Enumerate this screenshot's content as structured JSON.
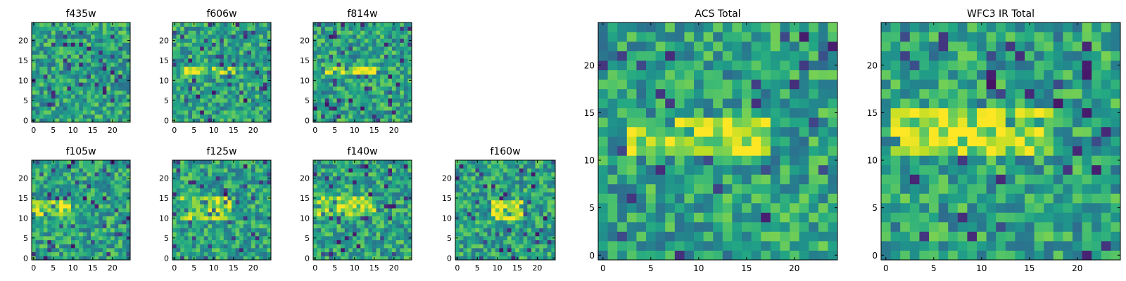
{
  "chart_data": {
    "type": "heatmap",
    "colormap": "viridis",
    "grid": false,
    "legend": "none",
    "panels": [
      {
        "name": "f435w-panel",
        "title": "f435w",
        "band_rows": [],
        "band_cols": [
          0,
          24
        ],
        "band_strength": 0.05,
        "xlim": [
          0,
          24
        ],
        "ylim": [
          0,
          24
        ],
        "xticks": [
          0,
          5,
          10,
          15,
          20
        ],
        "yticks": [
          0,
          5,
          10,
          15,
          20
        ]
      },
      {
        "name": "f606w-panel",
        "title": "f606w",
        "band_rows": [
          12,
          13
        ],
        "band_cols": [
          3,
          15
        ],
        "band_strength": 0.32,
        "xlim": [
          0,
          24
        ],
        "ylim": [
          0,
          24
        ],
        "xticks": [
          0,
          5,
          10,
          15,
          20
        ],
        "yticks": [
          0,
          5,
          10,
          15,
          20
        ]
      },
      {
        "name": "f814w-panel",
        "title": "f814w",
        "band_rows": [
          12,
          13
        ],
        "band_cols": [
          3,
          15
        ],
        "band_strength": 0.32,
        "xlim": [
          0,
          24
        ],
        "ylim": [
          0,
          24
        ],
        "xticks": [
          0,
          5,
          10,
          15,
          20
        ],
        "yticks": [
          0,
          5,
          10,
          15,
          20
        ]
      },
      {
        "name": "f105w-panel",
        "title": "f105w",
        "band_rows": [
          11,
          14
        ],
        "band_cols": [
          0,
          9
        ],
        "band_strength": 0.28,
        "xlim": [
          0,
          24
        ],
        "ylim": [
          0,
          24
        ],
        "xticks": [
          0,
          5,
          10,
          15,
          20
        ],
        "yticks": [
          0,
          5,
          10,
          15,
          20
        ]
      },
      {
        "name": "f125w-panel",
        "title": "f125w",
        "band_rows": [
          10,
          15
        ],
        "band_cols": [
          2,
          14
        ],
        "band_strength": 0.22,
        "xlim": [
          0,
          24
        ],
        "ylim": [
          0,
          24
        ],
        "xticks": [
          0,
          5,
          10,
          15,
          20
        ],
        "yticks": [
          0,
          5,
          10,
          15,
          20
        ]
      },
      {
        "name": "f140w-panel",
        "title": "f140w",
        "band_rows": [
          11,
          15
        ],
        "band_cols": [
          1,
          15
        ],
        "band_strength": 0.25,
        "xlim": [
          0,
          24
        ],
        "ylim": [
          0,
          24
        ],
        "xticks": [
          0,
          5,
          10,
          15,
          20
        ],
        "yticks": [
          0,
          5,
          10,
          15,
          20
        ]
      },
      {
        "name": "f160w-panel",
        "title": "f160w",
        "band_rows": [
          10,
          14
        ],
        "band_cols": [
          9,
          16
        ],
        "band_strength": 0.38,
        "xlim": [
          0,
          24
        ],
        "ylim": [
          0,
          24
        ],
        "xticks": [
          0,
          5,
          10,
          15,
          20
        ],
        "yticks": [
          0,
          5,
          10,
          15,
          20
        ]
      },
      {
        "name": "acs-total-panel",
        "title": "ACS Total",
        "band_rows": [
          11,
          14
        ],
        "band_cols": [
          3,
          17
        ],
        "band_strength": 0.32,
        "xlim": [
          0,
          24
        ],
        "ylim": [
          0,
          24
        ],
        "xticks": [
          0,
          5,
          10,
          15,
          20
        ],
        "yticks": [
          0,
          5,
          10,
          15,
          20
        ]
      },
      {
        "name": "wfc3-ir-total-panel",
        "title": "WFC3 IR Total",
        "band_rows": [
          11,
          15
        ],
        "band_cols": [
          1,
          17
        ],
        "band_strength": 0.3,
        "xlim": [
          0,
          24
        ],
        "ylim": [
          0,
          24
        ],
        "xticks": [
          0,
          5,
          10,
          15,
          20
        ],
        "yticks": [
          0,
          5,
          10,
          15,
          20
        ]
      }
    ]
  }
}
